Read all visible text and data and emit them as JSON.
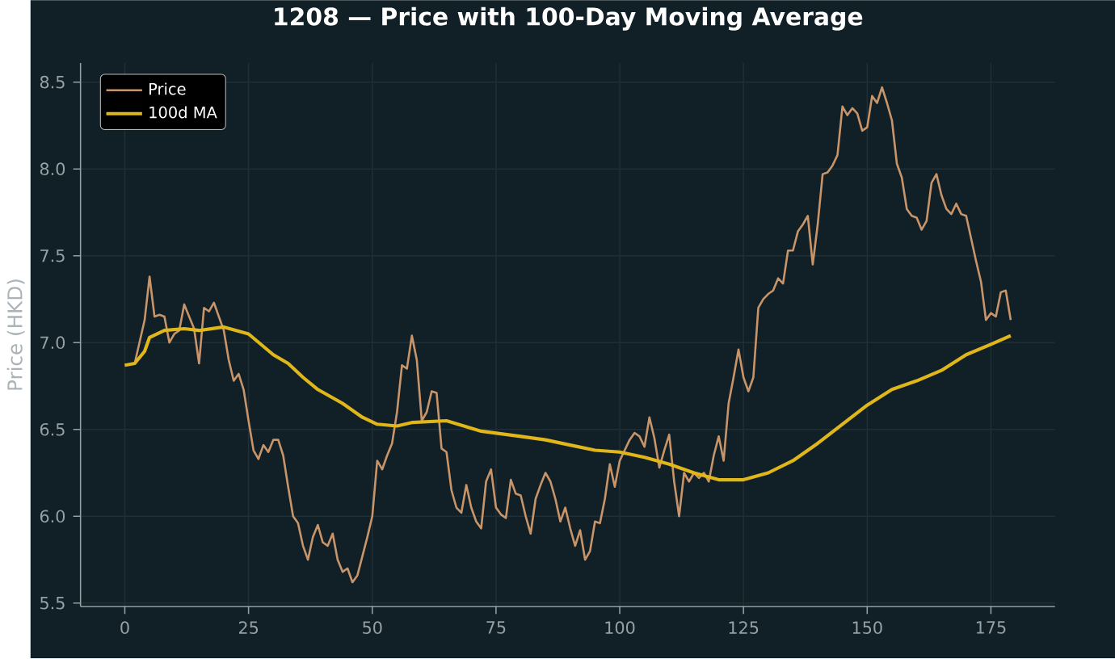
{
  "chart_data": {
    "type": "line",
    "title": "1208 — Price with 100-Day Moving Average",
    "ylabel": "Price (HKD)",
    "xlim": [
      -8.95,
      187.95
    ],
    "ylim": [
      5.48,
      8.61
    ],
    "xticks": [
      0,
      25,
      50,
      75,
      100,
      125,
      150,
      175
    ],
    "yticks": [
      5.5,
      {
        "value": 6,
        "label": "6.0"
      },
      6.5,
      {
        "value": 7,
        "label": "7.0"
      },
      7.5,
      {
        "value": 8,
        "label": "8.0"
      },
      8.5
    ],
    "grid": true,
    "legend": "top left",
    "line_style": "solid",
    "series": [
      {
        "name": "Price",
        "color": "#c8956a",
        "x": [
          0,
          2,
          4,
          5,
          6,
          7,
          8,
          9,
          10,
          11,
          12,
          13,
          14,
          15,
          16,
          17,
          18,
          19,
          20,
          21,
          22,
          23,
          24,
          25,
          26,
          27,
          28,
          29,
          30,
          31,
          32,
          33,
          34,
          35,
          36,
          37,
          38,
          39,
          40,
          41,
          42,
          43,
          44,
          45,
          46,
          47,
          48,
          49,
          50,
          51,
          52,
          53,
          54,
          55,
          56,
          57,
          58,
          59,
          60,
          61,
          62,
          63,
          64,
          65,
          66,
          67,
          68,
          69,
          70,
          71,
          72,
          73,
          74,
          75,
          76,
          77,
          78,
          79,
          80,
          81,
          82,
          83,
          84,
          85,
          86,
          87,
          88,
          89,
          90,
          91,
          92,
          93,
          94,
          95,
          96,
          97,
          98,
          99,
          100,
          101,
          102,
          103,
          104,
          105,
          106,
          107,
          108,
          109,
          110,
          111,
          112,
          113,
          114,
          115,
          116,
          117,
          118,
          119,
          120,
          121,
          122,
          123,
          124,
          125,
          126,
          127,
          128,
          129,
          130,
          131,
          132,
          133,
          134,
          135,
          136,
          137,
          138,
          139,
          140,
          141,
          142,
          143,
          144,
          145,
          146,
          147,
          148,
          149,
          150,
          151,
          152,
          153,
          154,
          155,
          156,
          157,
          158,
          159,
          160,
          161,
          162,
          163,
          164,
          165,
          166,
          167,
          168,
          169,
          170,
          171,
          172,
          173,
          174,
          175,
          176,
          177,
          178,
          179
        ],
        "values": [
          6.87,
          6.88,
          7.13,
          7.38,
          7.15,
          7.16,
          7.15,
          7.0,
          7.05,
          7.07,
          7.22,
          7.15,
          7.08,
          6.88,
          7.2,
          7.18,
          7.23,
          7.15,
          7.07,
          6.9,
          6.78,
          6.82,
          6.73,
          6.55,
          6.38,
          6.33,
          6.41,
          6.37,
          6.44,
          6.44,
          6.35,
          6.17,
          6.0,
          5.96,
          5.83,
          5.75,
          5.88,
          5.95,
          5.85,
          5.83,
          5.9,
          5.75,
          5.68,
          5.7,
          5.62,
          5.66,
          5.77,
          5.88,
          6.0,
          6.32,
          6.27,
          6.35,
          6.42,
          6.6,
          6.87,
          6.85,
          7.04,
          6.9,
          6.55,
          6.6,
          6.72,
          6.71,
          6.39,
          6.37,
          6.15,
          6.05,
          6.02,
          6.18,
          6.05,
          5.97,
          5.93,
          6.2,
          6.27,
          6.05,
          6.01,
          5.99,
          6.21,
          6.13,
          6.12,
          6.0,
          5.9,
          6.1,
          6.18,
          6.25,
          6.2,
          6.1,
          5.97,
          6.05,
          5.93,
          5.83,
          5.92,
          5.75,
          5.8,
          5.97,
          5.96,
          6.1,
          6.3,
          6.17,
          6.32,
          6.38,
          6.44,
          6.48,
          6.46,
          6.4,
          6.57,
          6.45,
          6.28,
          6.38,
          6.47,
          6.2,
          6.0,
          6.25,
          6.2,
          6.25,
          6.22,
          6.25,
          6.2,
          6.35,
          6.46,
          6.32,
          6.65,
          6.8,
          6.96,
          6.8,
          6.72,
          6.8,
          7.2,
          7.25,
          7.28,
          7.3,
          7.37,
          7.34,
          7.53,
          7.53,
          7.64,
          7.68,
          7.73,
          7.45,
          7.68,
          7.97,
          7.98,
          8.02,
          8.08,
          8.36,
          8.31,
          8.35,
          8.32,
          8.22,
          8.24,
          8.42,
          8.38,
          8.47,
          8.38,
          8.28,
          8.03,
          7.95,
          7.77,
          7.73,
          7.72,
          7.65,
          7.7,
          7.92,
          7.97,
          7.85,
          7.77,
          7.74,
          7.8,
          7.74,
          7.73,
          7.6,
          7.47,
          7.35,
          7.13,
          7.17,
          7.15,
          7.29,
          7.3,
          7.13
        ]
      },
      {
        "name": "100d MA",
        "color": "#e0b71a",
        "x": [
          0,
          2,
          4,
          5,
          8,
          12,
          15,
          20,
          25,
          30,
          33,
          36,
          39,
          44,
          48,
          51,
          55,
          58,
          65,
          72,
          80,
          85,
          90,
          95,
          100,
          105,
          110,
          115,
          120,
          125,
          130,
          135,
          140,
          145,
          150,
          155,
          160,
          165,
          170,
          175,
          179
        ],
        "values": [
          6.87,
          6.88,
          6.95,
          7.03,
          7.07,
          7.08,
          7.07,
          7.09,
          7.05,
          6.93,
          6.88,
          6.8,
          6.73,
          6.65,
          6.57,
          6.53,
          6.52,
          6.54,
          6.55,
          6.49,
          6.46,
          6.44,
          6.41,
          6.38,
          6.37,
          6.34,
          6.3,
          6.25,
          6.21,
          6.21,
          6.25,
          6.32,
          6.42,
          6.53,
          6.64,
          6.73,
          6.78,
          6.84,
          6.93,
          6.99,
          7.04
        ]
      }
    ]
  }
}
